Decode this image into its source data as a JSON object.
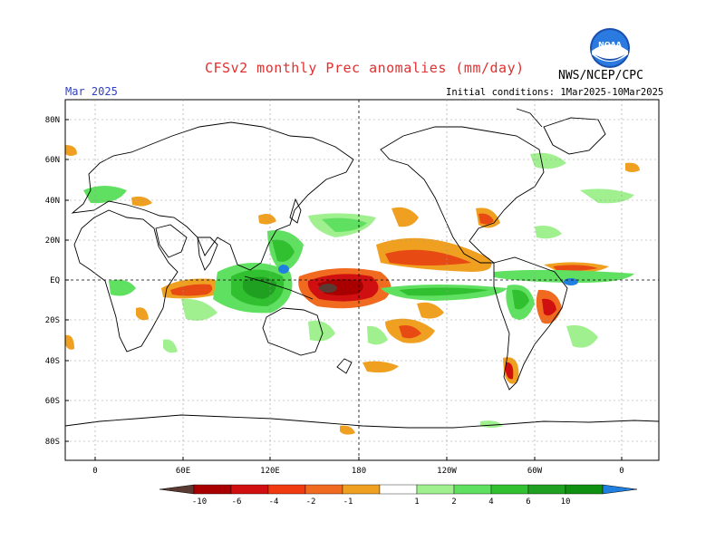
{
  "header": {
    "title": "CFSv2 monthly Prec anomalies (mm/day)",
    "agency": "NWS/NCEP/CPC",
    "period": "Mar 2025",
    "initial_conditions": "Initial conditions: 1Mar2025-10Mar2025",
    "logo_text": "NOAA"
  },
  "axes": {
    "lat_labels": [
      "80N",
      "60N",
      "40N",
      "20N",
      "EQ",
      "20S",
      "40S",
      "60S",
      "80S"
    ],
    "lon_labels": [
      "0",
      "60E",
      "120E",
      "180",
      "120W",
      "60W",
      "0"
    ]
  },
  "colorbar": {
    "labels": [
      "-10",
      "-6",
      "-4",
      "-2",
      "-1",
      "1",
      "2",
      "4",
      "6",
      "10"
    ],
    "colors": [
      "#5a3a32",
      "#a80000",
      "#d01010",
      "#f03a10",
      "#f06a20",
      "#f0a020",
      "#ffffff",
      "#a0f090",
      "#60e060",
      "#30c030",
      "#20a020",
      "#109010",
      "#2080e0"
    ]
  },
  "colors": {
    "title": "#e03030",
    "period": "#3040c0",
    "coast": "#000000",
    "grid": "#888888"
  }
}
